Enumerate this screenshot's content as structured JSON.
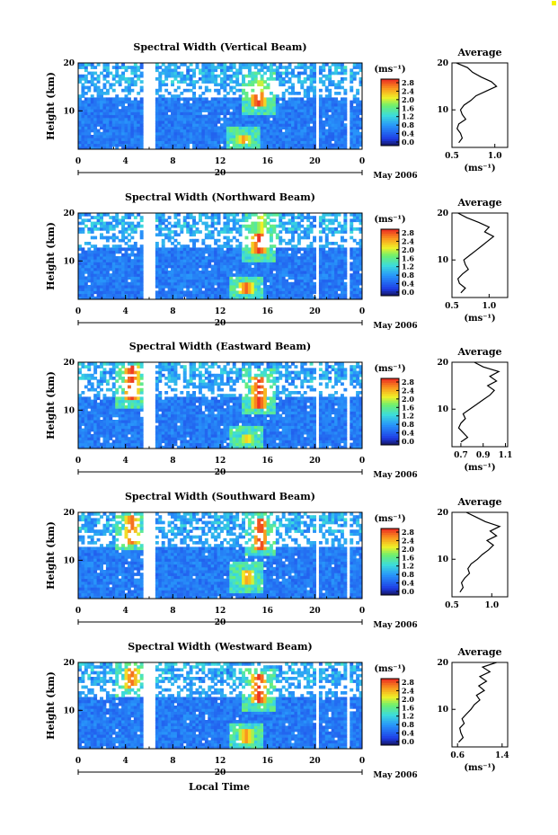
{
  "figure": {
    "xlabel": "Local Time",
    "date_label": "May 2006",
    "corner_mark_color": "#f6f200"
  },
  "chart_data": [
    {
      "type": "heatmap",
      "title": "Spectral Width (Vertical Beam)",
      "ylabel": "Height (km)",
      "xticks": [
        "0",
        "4",
        "8",
        "12",
        "16",
        "20",
        "0"
      ],
      "yticks": [
        "10",
        "20"
      ],
      "xlim": [
        0,
        24
      ],
      "ylim": [
        2,
        20
      ],
      "day_label": "20",
      "colorbar": {
        "unit": "(ms⁻¹)",
        "ticks": [
          "2.8",
          "2.4",
          "2.0",
          "1.6",
          "1.2",
          "0.8",
          "0.4",
          "0.0"
        ],
        "range": [
          0.0,
          3.0
        ]
      },
      "gaps": [
        [
          5.6,
          6.5
        ],
        [
          20.2,
          20.4
        ],
        [
          22.7,
          23.0
        ]
      ],
      "hotspots": [
        {
          "time": 15.2,
          "height_from": 11.0,
          "height_to": 14.0,
          "value": 3.0
        },
        {
          "time": 15.4,
          "height_from": 14.0,
          "height_to": 16.5,
          "value": 2.2
        },
        {
          "time": 14.0,
          "height_from": 3.0,
          "height_to": 5.0,
          "value": 2.6
        }
      ],
      "average": {
        "title": "Average",
        "unit": "(ms⁻¹)",
        "xticks": [
          "0.5",
          "1.0"
        ],
        "xlim": [
          0.5,
          1.15
        ],
        "yticks": [
          "10",
          "20"
        ],
        "profile": [
          [
            0.58,
            3
          ],
          [
            0.62,
            4
          ],
          [
            0.6,
            5
          ],
          [
            0.56,
            6
          ],
          [
            0.58,
            7
          ],
          [
            0.66,
            8
          ],
          [
            0.62,
            9
          ],
          [
            0.6,
            10
          ],
          [
            0.64,
            11
          ],
          [
            0.72,
            12
          ],
          [
            0.78,
            13
          ],
          [
            0.9,
            14
          ],
          [
            1.02,
            15
          ],
          [
            0.96,
            16
          ],
          [
            0.84,
            17
          ],
          [
            0.74,
            18
          ],
          [
            0.68,
            19
          ],
          [
            0.55,
            20
          ]
        ]
      }
    },
    {
      "type": "heatmap",
      "title": "Spectral Width (Northward Beam)",
      "ylabel": "Height (km)",
      "xticks": [
        "0",
        "4",
        "8",
        "12",
        "16",
        "20",
        "0"
      ],
      "yticks": [
        "10",
        "20"
      ],
      "xlim": [
        0,
        24
      ],
      "ylim": [
        2,
        20
      ],
      "day_label": "20",
      "colorbar": {
        "unit": "(ms⁻¹)",
        "ticks": [
          "2.8",
          "2.4",
          "2.0",
          "1.6",
          "1.2",
          "0.8",
          "0.4",
          "0.0"
        ],
        "range": [
          0.0,
          3.0
        ]
      },
      "gaps": [
        [
          5.6,
          6.5
        ],
        [
          20.2,
          20.4
        ],
        [
          22.7,
          23.0
        ]
      ],
      "hotspots": [
        {
          "time": 15.3,
          "height_from": 11.5,
          "height_to": 16.0,
          "value": 3.0
        },
        {
          "time": 15.5,
          "height_from": 16.0,
          "height_to": 20.0,
          "value": 2.2
        },
        {
          "time": 14.2,
          "height_from": 3.0,
          "height_to": 5.5,
          "value": 2.8
        }
      ],
      "average": {
        "title": "Average",
        "unit": "(ms⁻¹)",
        "xticks": [
          "0.5",
          "1.0"
        ],
        "xlim": [
          0.5,
          1.25
        ],
        "yticks": [
          "10",
          "20"
        ],
        "profile": [
          [
            0.62,
            3
          ],
          [
            0.68,
            4
          ],
          [
            0.6,
            5
          ],
          [
            0.58,
            6
          ],
          [
            0.64,
            7
          ],
          [
            0.72,
            8
          ],
          [
            0.68,
            9
          ],
          [
            0.66,
            10
          ],
          [
            0.74,
            11
          ],
          [
            0.82,
            12
          ],
          [
            0.9,
            13
          ],
          [
            0.98,
            14
          ],
          [
            1.06,
            15
          ],
          [
            0.94,
            16
          ],
          [
            1.0,
            17
          ],
          [
            0.86,
            18
          ],
          [
            0.7,
            19
          ],
          [
            0.58,
            20
          ]
        ]
      }
    },
    {
      "type": "heatmap",
      "title": "Spectral Width (Eastward Beam)",
      "ylabel": "Height (km)",
      "xticks": [
        "0",
        "4",
        "8",
        "12",
        "16",
        "20",
        "0"
      ],
      "yticks": [
        "10",
        "20"
      ],
      "xlim": [
        0,
        24
      ],
      "ylim": [
        2,
        20
      ],
      "day_label": "20",
      "colorbar": {
        "unit": "(ms⁻¹)",
        "ticks": [
          "2.8",
          "2.4",
          "2.0",
          "1.6",
          "1.2",
          "0.8",
          "0.4",
          "0.0"
        ],
        "range": [
          0.0,
          3.0
        ]
      },
      "gaps": [
        [
          5.6,
          6.5
        ],
        [
          20.2,
          20.4
        ],
        [
          22.7,
          23.0
        ]
      ],
      "hotspots": [
        {
          "time": 4.5,
          "height_from": 12.0,
          "height_to": 19.5,
          "value": 3.0
        },
        {
          "time": 15.3,
          "height_from": 10.5,
          "height_to": 17.0,
          "value": 3.0
        },
        {
          "time": 14.3,
          "height_from": 3.0,
          "height_to": 5.0,
          "value": 2.4
        }
      ],
      "average": {
        "title": "Average",
        "unit": "(ms⁻¹)",
        "xticks": [
          "0.7",
          "0.9",
          "1.1"
        ],
        "xlim": [
          0.62,
          1.12
        ],
        "yticks": [
          "10",
          "20"
        ],
        "profile": [
          [
            0.7,
            3
          ],
          [
            0.76,
            4
          ],
          [
            0.72,
            5
          ],
          [
            0.68,
            6
          ],
          [
            0.7,
            7
          ],
          [
            0.74,
            8
          ],
          [
            0.72,
            9
          ],
          [
            0.78,
            10
          ],
          [
            0.84,
            11
          ],
          [
            0.9,
            12
          ],
          [
            0.96,
            13
          ],
          [
            1.0,
            14
          ],
          [
            0.94,
            15
          ],
          [
            1.02,
            16
          ],
          [
            0.96,
            17
          ],
          [
            1.04,
            18
          ],
          [
            0.9,
            19
          ],
          [
            0.82,
            20
          ]
        ]
      }
    },
    {
      "type": "heatmap",
      "title": "Spectral Width (Southward Beam)",
      "ylabel": "Height (km)",
      "xticks": [
        "0",
        "4",
        "8",
        "12",
        "16",
        "20",
        "0"
      ],
      "yticks": [
        "10",
        "20"
      ],
      "xlim": [
        0,
        24
      ],
      "ylim": [
        2,
        20
      ],
      "day_label": "20",
      "colorbar": {
        "unit": "(ms⁻¹)",
        "ticks": [
          "2.8",
          "2.4",
          "2.0",
          "1.6",
          "1.2",
          "0.8",
          "0.4",
          "0.0"
        ],
        "range": [
          0.0,
          3.0
        ]
      },
      "gaps": [
        [
          5.6,
          6.5
        ],
        [
          20.2,
          20.4
        ],
        [
          22.7,
          23.0
        ]
      ],
      "hotspots": [
        {
          "time": 4.5,
          "height_from": 13.5,
          "height_to": 19.5,
          "value": 2.8
        },
        {
          "time": 15.4,
          "height_from": 12.5,
          "height_to": 19.0,
          "value": 3.0
        },
        {
          "time": 14.3,
          "height_from": 5.0,
          "height_to": 8.0,
          "value": 2.6
        }
      ],
      "average": {
        "title": "Average",
        "unit": "",
        "xticks": [
          "0.5",
          "1.0"
        ],
        "xlim": [
          0.5,
          1.2
        ],
        "yticks": [
          "10",
          "20"
        ],
        "profile": [
          [
            0.6,
            3
          ],
          [
            0.64,
            4
          ],
          [
            0.62,
            5
          ],
          [
            0.66,
            6
          ],
          [
            0.72,
            7
          ],
          [
            0.7,
            8
          ],
          [
            0.74,
            9
          ],
          [
            0.82,
            10
          ],
          [
            0.88,
            11
          ],
          [
            0.96,
            12
          ],
          [
            1.02,
            13
          ],
          [
            0.94,
            14
          ],
          [
            1.06,
            15
          ],
          [
            0.98,
            16
          ],
          [
            1.1,
            17
          ],
          [
            0.92,
            18
          ],
          [
            0.8,
            19
          ],
          [
            0.68,
            20
          ]
        ]
      }
    },
    {
      "type": "heatmap",
      "title": "Spectral Width (Westward Beam)",
      "ylabel": "Height (km)",
      "xticks": [
        "0",
        "4",
        "8",
        "12",
        "16",
        "20",
        "0"
      ],
      "yticks": [
        "10",
        "20"
      ],
      "xlim": [
        0,
        24
      ],
      "ylim": [
        2,
        20
      ],
      "day_label": "20",
      "colorbar": {
        "unit": "(ms⁻¹)",
        "ticks": [
          "2.8",
          "2.4",
          "2.0",
          "1.6",
          "1.2",
          "0.8",
          "0.4",
          "0.0"
        ],
        "range": [
          0.0,
          3.0
        ]
      },
      "gaps": [
        [
          5.6,
          6.5
        ],
        [
          20.2,
          20.4
        ],
        [
          22.7,
          23.0
        ]
      ],
      "hotspots": [
        {
          "time": 4.5,
          "height_from": 14.5,
          "height_to": 19.0,
          "value": 2.8
        },
        {
          "time": 15.3,
          "height_from": 11.5,
          "height_to": 17.5,
          "value": 3.0
        },
        {
          "time": 14.2,
          "height_from": 3.0,
          "height_to": 6.0,
          "value": 2.6
        }
      ],
      "average": {
        "title": "Average",
        "unit": "(ms⁻¹)",
        "xticks": [
          "0.6",
          "1.4"
        ],
        "xlim": [
          0.5,
          1.5
        ],
        "yticks": [
          "10",
          "20"
        ],
        "profile": [
          [
            0.62,
            3
          ],
          [
            0.7,
            4
          ],
          [
            0.66,
            5
          ],
          [
            0.64,
            6
          ],
          [
            0.72,
            7
          ],
          [
            0.68,
            8
          ],
          [
            0.76,
            9
          ],
          [
            0.84,
            10
          ],
          [
            0.9,
            11
          ],
          [
            1.0,
            12
          ],
          [
            0.94,
            13
          ],
          [
            1.08,
            14
          ],
          [
            0.98,
            15
          ],
          [
            1.12,
            16
          ],
          [
            1.0,
            17
          ],
          [
            1.18,
            18
          ],
          [
            1.05,
            19
          ],
          [
            1.3,
            20
          ]
        ]
      }
    }
  ]
}
